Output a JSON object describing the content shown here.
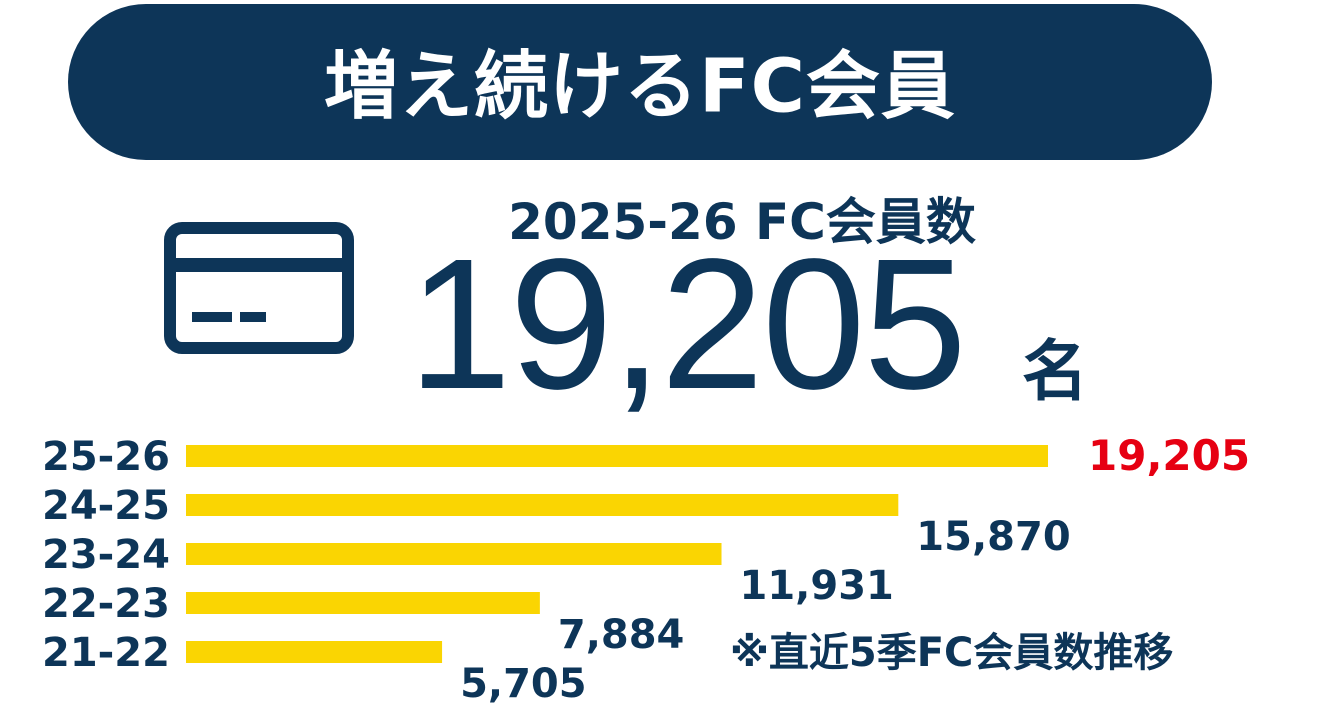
{
  "header": {
    "title": "増え続けるFC会員"
  },
  "summary": {
    "subtitle": "2025-26 FC会員数",
    "total": "19,205",
    "unit": "名",
    "icon": "credit-card-icon"
  },
  "note": "※直近5季FC会員数推移",
  "colors": {
    "navy": "#0d3558",
    "bar": "#fad502",
    "highlight": "#e60012"
  },
  "chart_data": {
    "type": "bar",
    "orientation": "horizontal",
    "categories": [
      "25-26",
      "24-25",
      "23-24",
      "22-23",
      "21-22"
    ],
    "values": [
      19205,
      15870,
      11931,
      7884,
      5705
    ],
    "value_labels": [
      "19,205",
      "15,870",
      "11,931",
      "7,884",
      "5,705"
    ],
    "highlight_index": 0,
    "xlim": [
      0,
      19205
    ],
    "grid": false,
    "legend": "none"
  }
}
